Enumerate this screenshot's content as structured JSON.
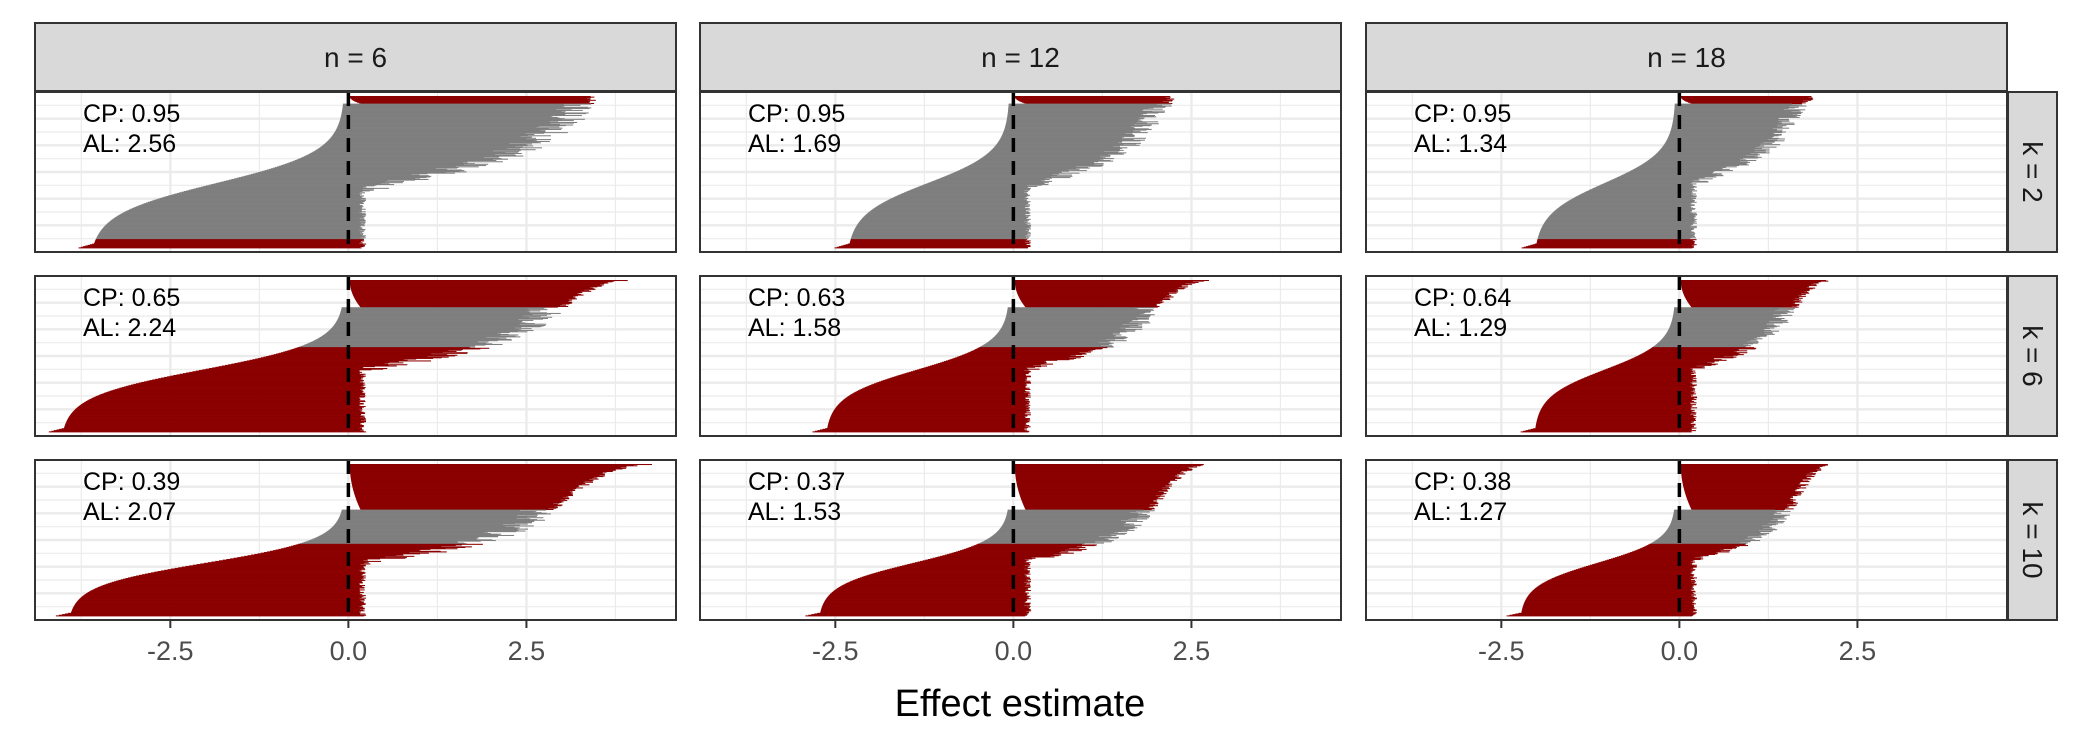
{
  "chart_data": {
    "type": "bar",
    "xlabel": "Effect estimate",
    "ylabel": "",
    "xlim": [
      -4.4,
      4.6
    ],
    "x_ticks": [
      -2.5,
      0.0,
      2.5
    ],
    "x_tick_labels": [
      "-2.5",
      "0.0",
      "2.5"
    ],
    "reference_line_x": 0.0,
    "grid": true,
    "col_facets": [
      "n = 6",
      "n = 12",
      "n = 18"
    ],
    "row_facets": [
      "k = 2",
      "k = 6",
      "k = 10"
    ],
    "colors": {
      "covering": "#8b0000",
      "other": "#7f7f7f",
      "strip": "#d9d9d9"
    },
    "panels": [
      {
        "n": 6,
        "k": 2,
        "cp_label": "CP: 0.95",
        "al_label": "AL: 2.56",
        "min_lower": -3.7,
        "max_upper": 3.5,
        "spread": 1.25,
        "frac_top": 0.05
      },
      {
        "n": 12,
        "k": 2,
        "cp_label": "CP: 0.95",
        "al_label": "AL: 1.69",
        "min_lower": -2.4,
        "max_upper": 2.3,
        "spread": 0.8,
        "frac_top": 0.05
      },
      {
        "n": 18,
        "k": 2,
        "cp_label": "CP: 0.95",
        "al_label": "AL: 1.34",
        "min_lower": -2.1,
        "max_upper": 2.0,
        "spread": 0.65,
        "frac_top": 0.05
      },
      {
        "n": 6,
        "k": 6,
        "cp_label": "CP: 0.65",
        "al_label": "AL: 2.24",
        "min_lower": -4.1,
        "max_upper": 4.0,
        "spread": 1.1,
        "frac_top": 0.18
      },
      {
        "n": 12,
        "k": 6,
        "cp_label": "CP: 0.63",
        "al_label": "AL: 1.58",
        "min_lower": -2.7,
        "max_upper": 2.8,
        "spread": 0.75,
        "frac_top": 0.18
      },
      {
        "n": 18,
        "k": 6,
        "cp_label": "CP: 0.64",
        "al_label": "AL: 1.29",
        "min_lower": -2.1,
        "max_upper": 2.2,
        "spread": 0.6,
        "frac_top": 0.18
      },
      {
        "n": 6,
        "k": 10,
        "cp_label": "CP: 0.39",
        "al_label": "AL: 2.07",
        "min_lower": -4.0,
        "max_upper": 4.3,
        "spread": 1.05,
        "frac_top": 0.3
      },
      {
        "n": 12,
        "k": 10,
        "cp_label": "CP: 0.37",
        "al_label": "AL: 1.53",
        "min_lower": -2.8,
        "max_upper": 2.8,
        "spread": 0.72,
        "frac_top": 0.3
      },
      {
        "n": 18,
        "k": 10,
        "cp_label": "CP: 0.38",
        "al_label": "AL: 1.27",
        "min_lower": -2.3,
        "max_upper": 2.2,
        "spread": 0.58,
        "frac_top": 0.3
      }
    ]
  }
}
